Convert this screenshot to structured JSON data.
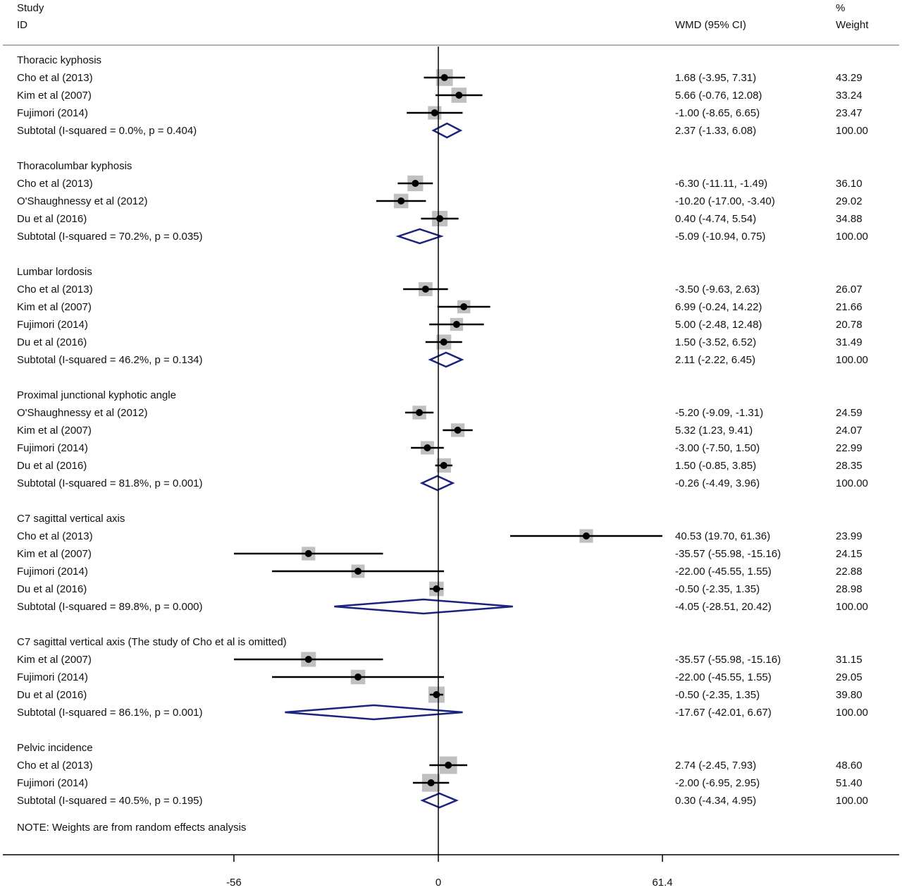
{
  "header": {
    "study_line1": "Study",
    "study_line2": "ID",
    "effect_label": "WMD (95% CI)",
    "weight_line1": "%",
    "weight_line2": "Weight"
  },
  "note": "NOTE: Weights are from random effects analysis",
  "colors": {
    "point": "#000000",
    "weight_box": "#c0c0c0",
    "diamond": "#1a237e",
    "line": "#000000"
  },
  "chart_data": {
    "type": "forest",
    "measure": "WMD",
    "null_value": 0,
    "xlim": [
      -56,
      61.4
    ],
    "xticks": [
      {
        "value": -56,
        "label": "-56"
      },
      {
        "value": 0,
        "label": "0"
      },
      {
        "value": 61.4,
        "label": "61.4"
      }
    ],
    "groups": [
      {
        "name": "Thoracic kyphosis",
        "studies": [
          {
            "label": "Cho et al (2013)",
            "est": 1.68,
            "lo": -3.95,
            "hi": 7.31,
            "ci_text": "1.68 (-3.95, 7.31)",
            "weight": "43.29"
          },
          {
            "label": "Kim et al (2007)",
            "est": 5.66,
            "lo": -0.76,
            "hi": 12.08,
            "ci_text": "5.66 (-0.76, 12.08)",
            "weight": "33.24"
          },
          {
            "label": "Fujimori (2014)",
            "est": -1.0,
            "lo": -8.65,
            "hi": 6.65,
            "ci_text": "-1.00 (-8.65, 6.65)",
            "weight": "23.47"
          }
        ],
        "subtotal": {
          "label": "Subtotal  (I-squared = 0.0%, p = 0.404)",
          "est": 2.37,
          "lo": -1.33,
          "hi": 6.08,
          "ci_text": "2.37 (-1.33, 6.08)",
          "weight": "100.00"
        }
      },
      {
        "name": "Thoracolumbar kyphosis",
        "studies": [
          {
            "label": "Cho et al (2013)",
            "est": -6.3,
            "lo": -11.11,
            "hi": -1.49,
            "ci_text": "-6.30 (-11.11, -1.49)",
            "weight": "36.10"
          },
          {
            "label": "O'Shaughnessy et al (2012)",
            "est": -10.2,
            "lo": -17.0,
            "hi": -3.4,
            "ci_text": "-10.20 (-17.00, -3.40)",
            "weight": "29.02"
          },
          {
            "label": "Du et al (2016)",
            "est": 0.4,
            "lo": -4.74,
            "hi": 5.54,
            "ci_text": "0.40 (-4.74, 5.54)",
            "weight": "34.88"
          }
        ],
        "subtotal": {
          "label": "Subtotal  (I-squared = 70.2%, p = 0.035)",
          "est": -5.09,
          "lo": -10.94,
          "hi": 0.75,
          "ci_text": "-5.09 (-10.94, 0.75)",
          "weight": "100.00"
        }
      },
      {
        "name": "Lumbar lordosis",
        "studies": [
          {
            "label": "Cho et al (2013)",
            "est": -3.5,
            "lo": -9.63,
            "hi": 2.63,
            "ci_text": "-3.50 (-9.63, 2.63)",
            "weight": "26.07"
          },
          {
            "label": "Kim et al (2007)",
            "est": 6.99,
            "lo": -0.24,
            "hi": 14.22,
            "ci_text": "6.99 (-0.24, 14.22)",
            "weight": "21.66"
          },
          {
            "label": "Fujimori (2014)",
            "est": 5.0,
            "lo": -2.48,
            "hi": 12.48,
            "ci_text": "5.00 (-2.48, 12.48)",
            "weight": "20.78"
          },
          {
            "label": "Du et al (2016)",
            "est": 1.5,
            "lo": -3.52,
            "hi": 6.52,
            "ci_text": "1.50 (-3.52, 6.52)",
            "weight": "31.49"
          }
        ],
        "subtotal": {
          "label": "Subtotal  (I-squared = 46.2%, p = 0.134)",
          "est": 2.11,
          "lo": -2.22,
          "hi": 6.45,
          "ci_text": "2.11 (-2.22, 6.45)",
          "weight": "100.00"
        }
      },
      {
        "name": "Proximal junctional kyphotic angle",
        "studies": [
          {
            "label": "O'Shaughnessy et al (2012)",
            "est": -5.2,
            "lo": -9.09,
            "hi": -1.31,
            "ci_text": "-5.20 (-9.09, -1.31)",
            "weight": "24.59"
          },
          {
            "label": "Kim et al (2007)",
            "est": 5.32,
            "lo": 1.23,
            "hi": 9.41,
            "ci_text": "5.32 (1.23, 9.41)",
            "weight": "24.07"
          },
          {
            "label": "Fujimori (2014)",
            "est": -3.0,
            "lo": -7.5,
            "hi": 1.5,
            "ci_text": "-3.00 (-7.50, 1.50)",
            "weight": "22.99"
          },
          {
            "label": "Du et al (2016)",
            "est": 1.5,
            "lo": -0.85,
            "hi": 3.85,
            "ci_text": "1.50 (-0.85, 3.85)",
            "weight": "28.35"
          }
        ],
        "subtotal": {
          "label": "Subtotal  (I-squared = 81.8%, p = 0.001)",
          "est": -0.26,
          "lo": -4.49,
          "hi": 3.96,
          "ci_text": "-0.26 (-4.49, 3.96)",
          "weight": "100.00"
        }
      },
      {
        "name": "C7 sagittal vertical axis",
        "studies": [
          {
            "label": "Cho et al (2013)",
            "est": 40.53,
            "lo": 19.7,
            "hi": 61.36,
            "ci_text": "40.53 (19.70, 61.36)",
            "weight": "23.99"
          },
          {
            "label": "Kim et al (2007)",
            "est": -35.57,
            "lo": -55.98,
            "hi": -15.16,
            "ci_text": "-35.57 (-55.98, -15.16)",
            "weight": "24.15"
          },
          {
            "label": "Fujimori (2014)",
            "est": -22.0,
            "lo": -45.55,
            "hi": 1.55,
            "ci_text": "-22.00 (-45.55, 1.55)",
            "weight": "22.88"
          },
          {
            "label": "Du et al (2016)",
            "est": -0.5,
            "lo": -2.35,
            "hi": 1.35,
            "ci_text": "-0.50 (-2.35, 1.35)",
            "weight": "28.98"
          }
        ],
        "subtotal": {
          "label": "Subtotal  (I-squared = 89.8%, p = 0.000)",
          "est": -4.05,
          "lo": -28.51,
          "hi": 20.42,
          "ci_text": "-4.05 (-28.51, 20.42)",
          "weight": "100.00"
        }
      },
      {
        "name": "C7 sagittal vertical axis (The study of Cho et al is omitted)",
        "studies": [
          {
            "label": "Kim et al (2007)",
            "est": -35.57,
            "lo": -55.98,
            "hi": -15.16,
            "ci_text": "-35.57 (-55.98, -15.16)",
            "weight": "31.15"
          },
          {
            "label": "Fujimori (2014)",
            "est": -22.0,
            "lo": -45.55,
            "hi": 1.55,
            "ci_text": "-22.00 (-45.55, 1.55)",
            "weight": "29.05"
          },
          {
            "label": "Du et al (2016)",
            "est": -0.5,
            "lo": -2.35,
            "hi": 1.35,
            "ci_text": "-0.50 (-2.35, 1.35)",
            "weight": "39.80"
          }
        ],
        "subtotal": {
          "label": "Subtotal  (I-squared = 86.1%, p = 0.001)",
          "est": -17.67,
          "lo": -42.01,
          "hi": 6.67,
          "ci_text": "-17.67 (-42.01, 6.67)",
          "weight": "100.00"
        }
      },
      {
        "name": "Pelvic incidence",
        "studies": [
          {
            "label": "Cho et al (2013)",
            "est": 2.74,
            "lo": -2.45,
            "hi": 7.93,
            "ci_text": "2.74 (-2.45, 7.93)",
            "weight": "48.60"
          },
          {
            "label": "Fujimori (2014)",
            "est": -2.0,
            "lo": -6.95,
            "hi": 2.95,
            "ci_text": "-2.00 (-6.95, 2.95)",
            "weight": "51.40"
          }
        ],
        "subtotal": {
          "label": "Subtotal  (I-squared = 40.5%, p = 0.195)",
          "est": 0.3,
          "lo": -4.34,
          "hi": 4.95,
          "ci_text": "0.30 (-4.34, 4.95)",
          "weight": "100.00"
        }
      }
    ]
  }
}
